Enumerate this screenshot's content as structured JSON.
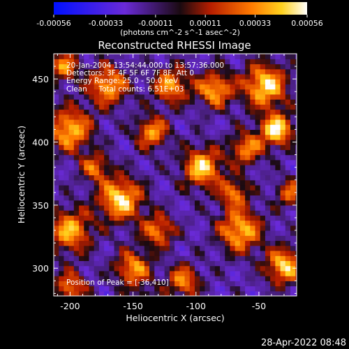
{
  "chart_data": {
    "type": "heatmap",
    "title": "Reconstructed RHESSI Image",
    "xlabel": "Heliocentric X (arcsec)",
    "ylabel": "Heliocentric Y (arcsec)",
    "xlim": [
      -213,
      -20
    ],
    "ylim": [
      278,
      470
    ],
    "xticks": [
      -200,
      -150,
      -100,
      -50
    ],
    "yticks": [
      300,
      350,
      400,
      450
    ],
    "colorbar": {
      "ticks": [
        -0.00056,
        -0.00033,
        -0.00011,
        0.00011,
        0.00033,
        0.00056
      ],
      "tick_labels": [
        "-0.00056",
        "-0.00033",
        "-0.00011",
        "0.00011",
        "0.00033",
        "0.00056"
      ],
      "unit_label": "(photons cm^-2 s^-1 asec^-2)",
      "range": [
        -0.00056,
        0.00056
      ]
    },
    "annotations": [
      "20-Jan-2004 13:54:44.000 to 13:57:36.000",
      "Detectors: 3F 4F 5F 6F 7F 8F, Att 0",
      "Energy Range: 25.0 - 50.0 keV",
      "Clean     Total counts: 6.51E+03"
    ],
    "peak_label": "Position of Peak = [-36,410]",
    "peak": [
      -36,
      410
    ],
    "blobs": [
      {
        "x": -36,
        "y": 410,
        "amp": 1.0,
        "r": 9
      },
      {
        "x": -45,
        "y": 445,
        "amp": 0.95,
        "r": 12
      },
      {
        "x": -85,
        "y": 442,
        "amp": 0.8,
        "r": 10
      },
      {
        "x": -120,
        "y": 445,
        "amp": 0.75,
        "r": 10
      },
      {
        "x": -170,
        "y": 445,
        "amp": 0.8,
        "r": 11
      },
      {
        "x": -205,
        "y": 460,
        "amp": 0.7,
        "r": 8
      },
      {
        "x": -200,
        "y": 410,
        "amp": 0.85,
        "r": 12
      },
      {
        "x": -135,
        "y": 408,
        "amp": 0.75,
        "r": 9
      },
      {
        "x": -95,
        "y": 380,
        "amp": 0.9,
        "r": 11
      },
      {
        "x": -160,
        "y": 355,
        "amp": 0.95,
        "r": 12
      },
      {
        "x": -200,
        "y": 330,
        "amp": 0.8,
        "r": 12
      },
      {
        "x": -130,
        "y": 330,
        "amp": 0.7,
        "r": 9
      },
      {
        "x": -65,
        "y": 330,
        "amp": 0.85,
        "r": 12
      },
      {
        "x": -30,
        "y": 302,
        "amp": 0.9,
        "r": 10
      },
      {
        "x": -150,
        "y": 300,
        "amp": 0.75,
        "r": 10
      },
      {
        "x": -200,
        "y": 285,
        "amp": 0.65,
        "r": 9
      },
      {
        "x": -110,
        "y": 290,
        "amp": 0.7,
        "r": 9
      },
      {
        "x": -70,
        "y": 360,
        "amp": 0.65,
        "r": 8
      },
      {
        "x": -180,
        "y": 380,
        "amp": 0.6,
        "r": 8
      },
      {
        "x": -60,
        "y": 395,
        "amp": 0.7,
        "r": 9
      },
      {
        "x": -25,
        "y": 360,
        "amp": 0.6,
        "r": 8
      },
      {
        "x": -140,
        "y": 270,
        "amp": 0.5,
        "r": 8
      }
    ]
  },
  "timestamp": "28-Apr-2022 08:48"
}
